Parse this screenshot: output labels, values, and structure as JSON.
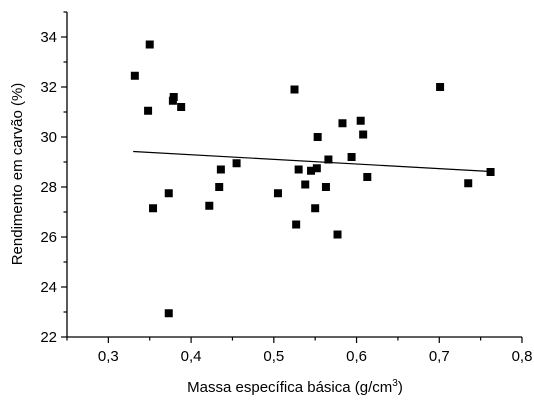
{
  "chart_data": {
    "type": "scatter",
    "xlabel": "Massa específica básica (g/cm",
    "xlabel_sup": "3",
    "xlabel_end": ")",
    "ylabel": "Rendimento em carvão (%)",
    "xlim": [
      0.25,
      0.8
    ],
    "ylim": [
      22,
      35
    ],
    "x_ticks": [
      0.3,
      0.4,
      0.5,
      0.6,
      0.7,
      0.8
    ],
    "x_tick_labels": [
      "0,3",
      "0,4",
      "0,5",
      "0,6",
      "0,7",
      "0,8"
    ],
    "y_ticks": [
      22,
      24,
      26,
      28,
      30,
      32,
      34
    ],
    "y_tick_labels": [
      "22",
      "24",
      "26",
      "28",
      "30",
      "32",
      "34"
    ],
    "grid": false,
    "marker": "square",
    "color": "#000000",
    "series": [
      {
        "points": [
          [
            0.332,
            32.45
          ],
          [
            0.348,
            31.05
          ],
          [
            0.35,
            33.7
          ],
          [
            0.354,
            27.15
          ],
          [
            0.373,
            27.75
          ],
          [
            0.373,
            22.95
          ],
          [
            0.378,
            31.45
          ],
          [
            0.379,
            31.6
          ],
          [
            0.388,
            31.2
          ],
          [
            0.422,
            27.25
          ],
          [
            0.434,
            28.0
          ],
          [
            0.436,
            28.7
          ],
          [
            0.455,
            28.95
          ],
          [
            0.505,
            27.75
          ],
          [
            0.525,
            31.9
          ],
          [
            0.527,
            26.5
          ],
          [
            0.53,
            28.7
          ],
          [
            0.538,
            28.1
          ],
          [
            0.545,
            28.65
          ],
          [
            0.55,
            27.15
          ],
          [
            0.552,
            28.75
          ],
          [
            0.553,
            30.0
          ],
          [
            0.563,
            28.0
          ],
          [
            0.566,
            29.1
          ],
          [
            0.577,
            26.1
          ],
          [
            0.583,
            30.55
          ],
          [
            0.594,
            29.2
          ],
          [
            0.605,
            30.65
          ],
          [
            0.608,
            30.1
          ],
          [
            0.613,
            28.4
          ],
          [
            0.701,
            32.0
          ],
          [
            0.735,
            28.15
          ],
          [
            0.762,
            28.6
          ]
        ]
      }
    ],
    "trendline": {
      "x": [
        0.33,
        0.762
      ],
      "y": [
        29.42,
        28.62
      ]
    }
  }
}
